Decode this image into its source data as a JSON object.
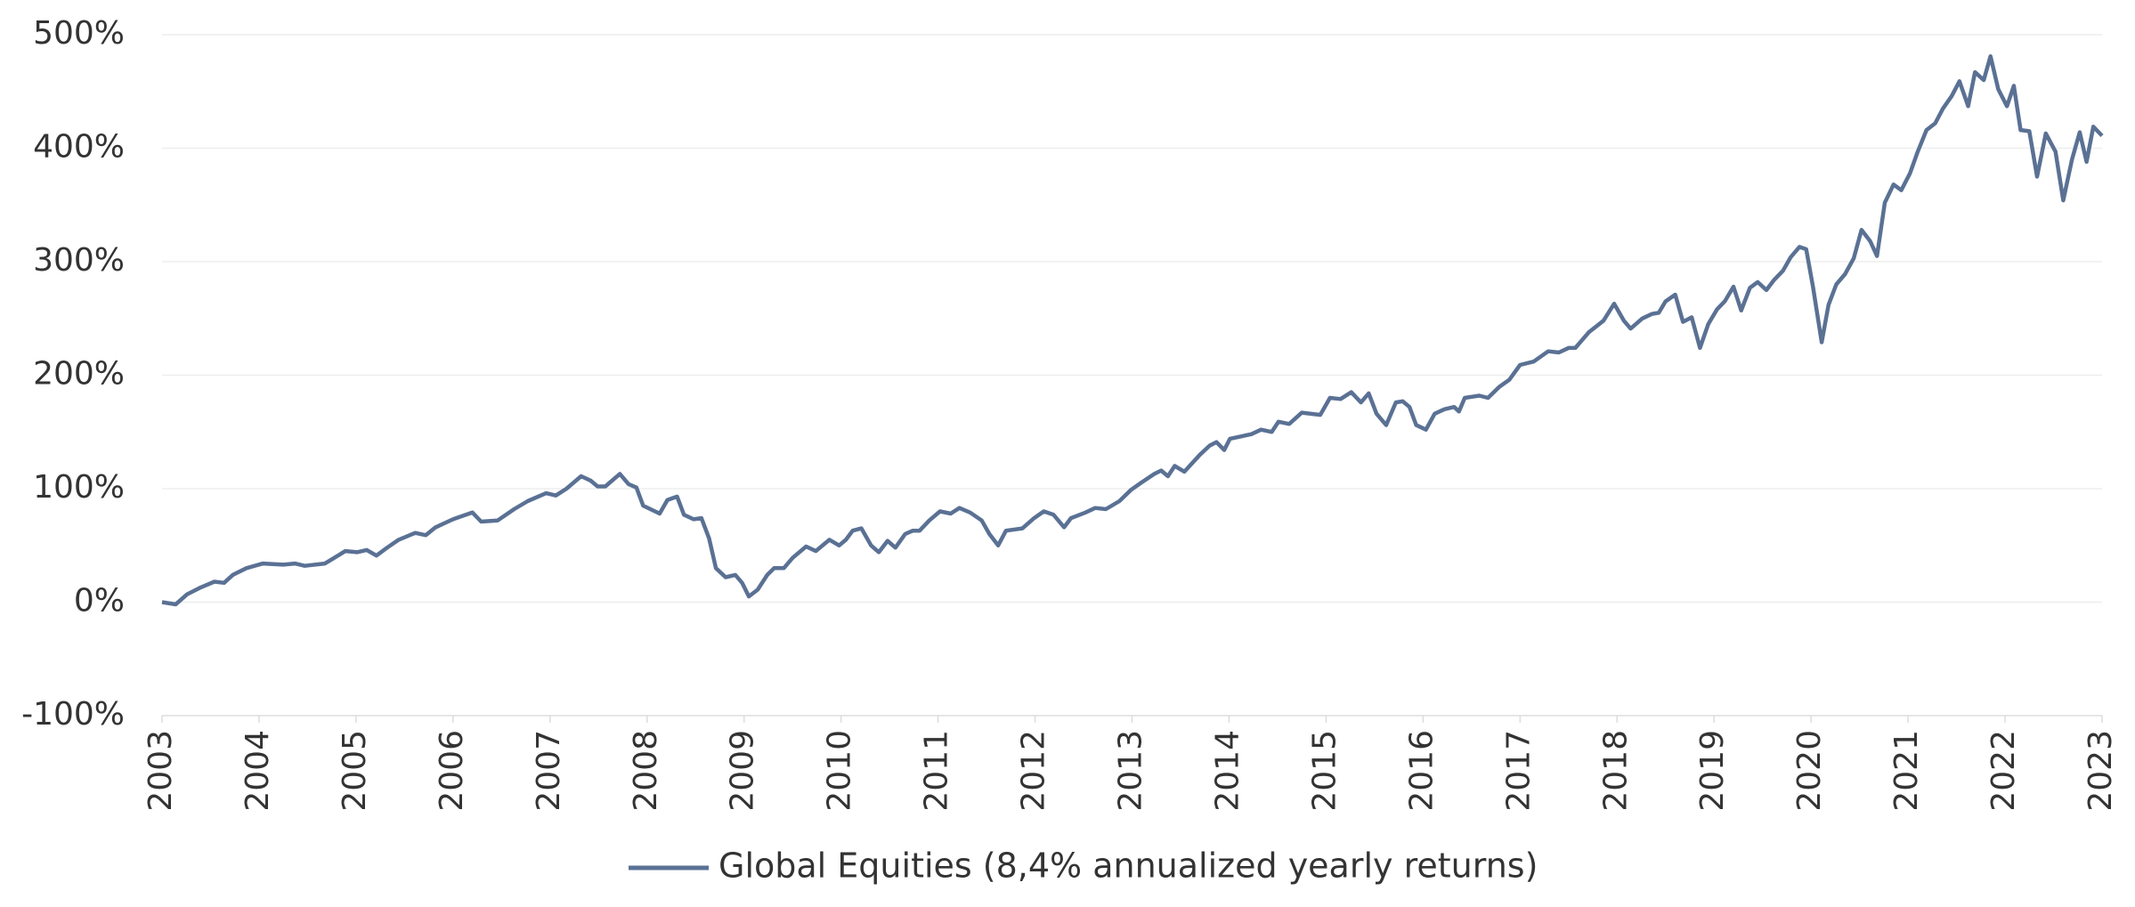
{
  "chart_data": {
    "type": "line",
    "x": [
      2003,
      2003.14,
      2003.26,
      2003.4,
      2003.54,
      2003.64,
      2003.73,
      2003.87,
      2004.04,
      2004.25,
      2004.37,
      2004.47,
      2004.68,
      2004.89,
      2005.01,
      2005.11,
      2005.21,
      2005.32,
      2005.44,
      2005.61,
      2005.72,
      2005.82,
      2006.0,
      2006.2,
      2006.29,
      2006.46,
      2006.63,
      2006.77,
      2006.96,
      2007.06,
      2007.17,
      2007.32,
      2007.42,
      2007.49,
      2007.57,
      2007.72,
      2007.81,
      2007.89,
      2007.96,
      2008.13,
      2008.21,
      2008.31,
      2008.38,
      2008.48,
      2008.56,
      2008.64,
      2008.71,
      2008.81,
      2008.91,
      2008.98,
      2009.05,
      2009.14,
      2009.24,
      2009.31,
      2009.41,
      2009.5,
      2009.64,
      2009.74,
      2009.88,
      2009.98,
      2010.05,
      2010.12,
      2010.21,
      2010.31,
      2010.39,
      2010.48,
      2010.56,
      2010.66,
      2010.74,
      2010.81,
      2010.91,
      2011.02,
      2011.13,
      2011.22,
      2011.33,
      2011.45,
      2011.53,
      2011.62,
      2011.7,
      2011.87,
      2011.99,
      2012.09,
      2012.19,
      2012.3,
      2012.37,
      2012.52,
      2012.62,
      2012.73,
      2012.87,
      2012.99,
      2013.09,
      2013.23,
      2013.3,
      2013.37,
      2013.44,
      2013.54,
      2013.7,
      2013.8,
      2013.87,
      2013.95,
      2014.01,
      2014.23,
      2014.33,
      2014.44,
      2014.51,
      2014.62,
      2014.75,
      2014.94,
      2015.04,
      2015.15,
      2015.26,
      2015.36,
      2015.44,
      2015.52,
      2015.62,
      2015.72,
      2015.79,
      2015.86,
      2015.93,
      2016.03,
      2016.12,
      2016.22,
      2016.32,
      2016.37,
      2016.43,
      2016.58,
      2016.67,
      2016.79,
      2016.89,
      2017.0,
      2017.14,
      2017.29,
      2017.4,
      2017.5,
      2017.57,
      2017.71,
      2017.86,
      2017.97,
      2018.07,
      2018.14,
      2018.26,
      2018.36,
      2018.43,
      2018.5,
      2018.6,
      2018.68,
      2018.77,
      2018.855,
      2018.94,
      2019.03,
      2019.11,
      2019.2,
      2019.28,
      2019.37,
      2019.45,
      2019.54,
      2019.62,
      2019.71,
      2019.79,
      2019.88,
      2019.95,
      2020.02,
      2020.11,
      2020.18,
      2020.26,
      2020.35,
      2020.44,
      2020.52,
      2020.61,
      2020.68,
      2020.76,
      2020.85,
      2020.93,
      2021.02,
      2021.1,
      2021.19,
      2021.28,
      2021.36,
      2021.45,
      2021.53,
      2021.62,
      2021.69,
      2021.78,
      2021.85,
      2021.93,
      2022.02,
      2022.09,
      2022.16,
      2022.25,
      2022.33,
      2022.42,
      2022.52,
      2022.6,
      2022.69,
      2022.77,
      2022.84,
      2022.91,
      2023.0
    ],
    "series": [
      {
        "name": "Global Equities (8,4% annualized yearly returns)",
        "color": "#5a7194",
        "values": [
          0,
          -2,
          7,
          13,
          18,
          17,
          24,
          30,
          34,
          33,
          34,
          32,
          34,
          45,
          44,
          46,
          41,
          48,
          55,
          61,
          59,
          66,
          73,
          79,
          71,
          72,
          82,
          89,
          96,
          94,
          100,
          111,
          107,
          102,
          102,
          113,
          104,
          101,
          85,
          78,
          90,
          93,
          77,
          73,
          74,
          56,
          30,
          22,
          24,
          17,
          5,
          11,
          24,
          30,
          30,
          39,
          49,
          45,
          55,
          50,
          55,
          63,
          65,
          50,
          44,
          54,
          48,
          60,
          63,
          63,
          72,
          80,
          78,
          83,
          79,
          72,
          60,
          50,
          63,
          65,
          74,
          80,
          77,
          66,
          74,
          79,
          83,
          82,
          89,
          99,
          105,
          113,
          116,
          111,
          120,
          115,
          130,
          138,
          141,
          134,
          144,
          148,
          152,
          150,
          159,
          157,
          167,
          165,
          180,
          179,
          185,
          176,
          184,
          166,
          156,
          176,
          177,
          172,
          156,
          152,
          166,
          170,
          172,
          168,
          180,
          182,
          180,
          190,
          196,
          209,
          212,
          221,
          220,
          224,
          224,
          238,
          248,
          263,
          248,
          241,
          250,
          254,
          255,
          265,
          271,
          247,
          251,
          224,
          245,
          258,
          265,
          278,
          257,
          277,
          282,
          275,
          284,
          292,
          304,
          313,
          311,
          278,
          229,
          262,
          280,
          289,
          303,
          328,
          318,
          305,
          352,
          368,
          363,
          378,
          397,
          416,
          422,
          435,
          446,
          459,
          437,
          467,
          460,
          481,
          452,
          437,
          455,
          416,
          415,
          375,
          413,
          397,
          354,
          390,
          414,
          388,
          419,
          411
        ]
      }
    ],
    "xlim": [
      2003,
      2023
    ],
    "xticks": [
      2003,
      2004,
      2005,
      2006,
      2007,
      2008,
      2009,
      2010,
      2011,
      2012,
      2013,
      2014,
      2015,
      2016,
      2017,
      2018,
      2019,
      2020,
      2021,
      2022,
      2023
    ],
    "ylim": [
      -100,
      500
    ],
    "yticks": [
      {
        "value": -100,
        "label": "-100%"
      },
      {
        "value": 0,
        "label": "0%"
      },
      {
        "value": 100,
        "label": "100%"
      },
      {
        "value": 200,
        "label": "200%"
      },
      {
        "value": 300,
        "label": "300%"
      },
      {
        "value": 400,
        "label": "400%"
      },
      {
        "value": 500,
        "label": "500%"
      }
    ],
    "grid": true,
    "legend": "bottom"
  }
}
